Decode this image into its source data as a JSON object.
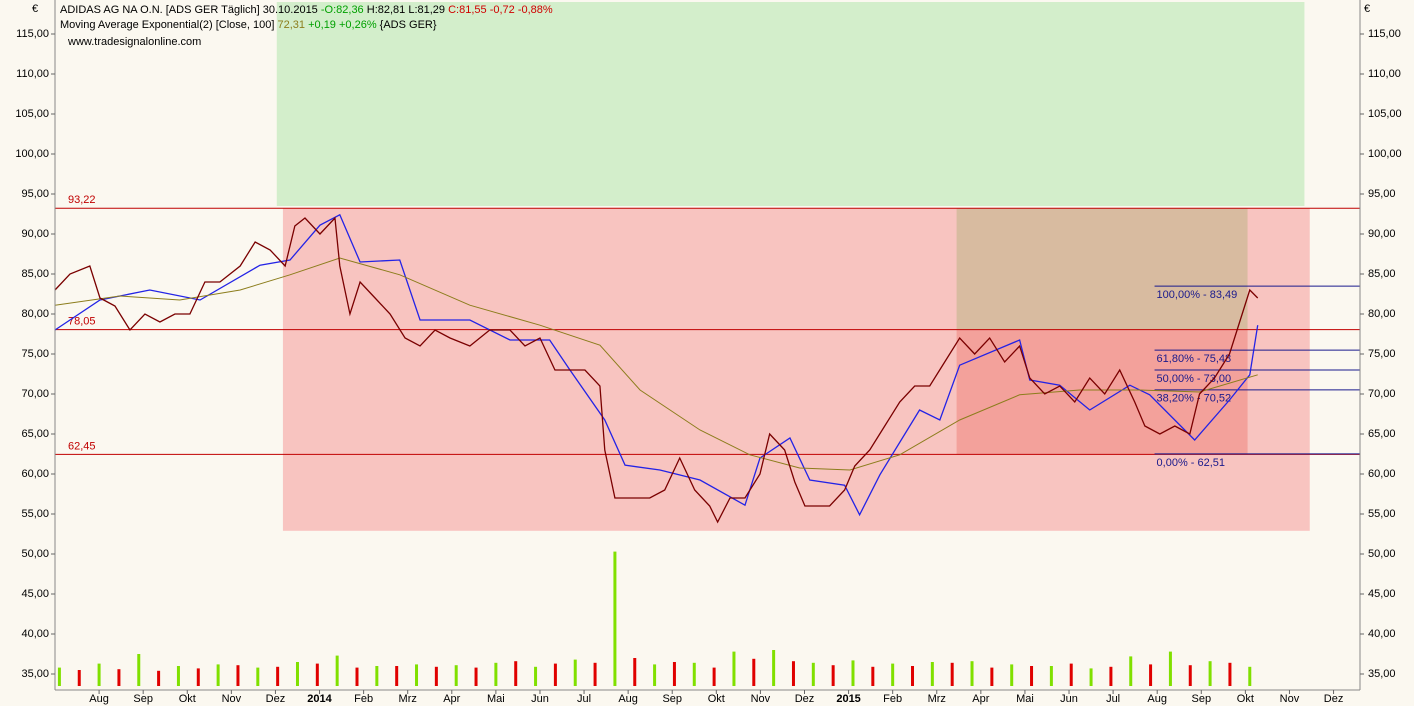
{
  "chart_data": {
    "type": "line",
    "currency": "€",
    "symbol": "ADIDAS AG NA O.N. [ADS GER  Täglich] 30.10.2015",
    "open": "-O:82,36",
    "high": "H:82,81",
    "low": "L:81,29",
    "close": "C:81,55 -0,72 -0,88%",
    "indicator": "Moving Average Exponential(2) [Close, 100]",
    "indicator_value": "72,31",
    "indicator_change": "+0,19 +0,26%",
    "indicator_source": "{ADS GER}",
    "source": "www.tradesignalonline.com",
    "xlim": [
      0,
      29.6
    ],
    "xticks": [
      {
        "value": 1,
        "label": "Aug"
      },
      {
        "value": 2,
        "label": "Sep"
      },
      {
        "value": 3,
        "label": "Okt"
      },
      {
        "value": 4,
        "label": "Nov"
      },
      {
        "value": 5,
        "label": "Dez"
      },
      {
        "value": 6,
        "label": "2014"
      },
      {
        "value": 7,
        "label": "Feb"
      },
      {
        "value": 8,
        "label": "Mrz"
      },
      {
        "value": 9,
        "label": "Apr"
      },
      {
        "value": 10,
        "label": "Mai"
      },
      {
        "value": 11,
        "label": "Jun"
      },
      {
        "value": 12,
        "label": "Jul"
      },
      {
        "value": 13,
        "label": "Aug"
      },
      {
        "value": 14,
        "label": "Sep"
      },
      {
        "value": 15,
        "label": "Okt"
      },
      {
        "value": 16,
        "label": "Nov"
      },
      {
        "value": 17,
        "label": "Dez"
      },
      {
        "value": 18,
        "label": "2015"
      },
      {
        "value": 19,
        "label": "Feb"
      },
      {
        "value": 20,
        "label": "Mrz"
      },
      {
        "value": 21,
        "label": "Apr"
      },
      {
        "value": 22,
        "label": "Mai"
      },
      {
        "value": 23,
        "label": "Jun"
      },
      {
        "value": 24,
        "label": "Jul"
      },
      {
        "value": 25,
        "label": "Aug"
      },
      {
        "value": 26,
        "label": "Sep"
      },
      {
        "value": 27,
        "label": "Okt"
      },
      {
        "value": 28,
        "label": "Nov"
      },
      {
        "value": 29,
        "label": "Dez"
      }
    ],
    "ylim": [
      33,
      119
    ],
    "yticks": [
      {
        "value": 35,
        "label": "35,00"
      },
      {
        "value": 40,
        "label": "40,00"
      },
      {
        "value": 45,
        "label": "45,00"
      },
      {
        "value": 50,
        "label": "50,00"
      },
      {
        "value": 55,
        "label": "55,00"
      },
      {
        "value": 60,
        "label": "60,00"
      },
      {
        "value": 65,
        "label": "65,00"
      },
      {
        "value": 70,
        "label": "70,00"
      },
      {
        "value": 75,
        "label": "75,00"
      },
      {
        "value": 80,
        "label": "80,00"
      },
      {
        "value": 85,
        "label": "85,00"
      },
      {
        "value": 90,
        "label": "90,00"
      },
      {
        "value": 95,
        "label": "95,00"
      },
      {
        "value": 100,
        "label": "100,00"
      },
      {
        "value": 105,
        "label": "105,00"
      },
      {
        "value": 110,
        "label": "110,00"
      },
      {
        "value": 115,
        "label": "115,00"
      }
    ],
    "zones": [
      {
        "color": "#d3eecb",
        "xlim": [
          5.03,
          28.34
        ],
        "ylim": [
          93.5,
          119
        ]
      },
      {
        "color": "#f8c4c0",
        "xlim": [
          5.17,
          28.46
        ],
        "ylim": [
          52.9,
          93.22
        ]
      },
      {
        "color": "#d8bba0",
        "xlim": [
          20.45,
          27.05
        ],
        "ylim": [
          78.05,
          93.22
        ]
      },
      {
        "color": "#f3a19b",
        "xlim": [
          20.45,
          27.05
        ],
        "ylim": [
          62.45,
          78.05
        ]
      }
    ],
    "levels": [
      {
        "value": 93.22,
        "label": "93,22"
      },
      {
        "value": 78.05,
        "label": "78,05"
      },
      {
        "value": 62.45,
        "label": "62,45"
      }
    ],
    "level_color": "#c00000",
    "fib_start": 24.94,
    "fib_color": "#1a1a8c",
    "fib": [
      {
        "value": 83.49,
        "label": "100,00% - 83,49"
      },
      {
        "value": 75.48,
        "label": "61,80% - 75,48"
      },
      {
        "value": 73.0,
        "label": "50,00% - 73,00"
      },
      {
        "value": 70.52,
        "label": "38,20% - 70,52"
      },
      {
        "value": 62.51,
        "label": "0,00% - 62,51"
      }
    ],
    "series": [
      {
        "color": "#2323e6",
        "x": [
          0,
          1.02,
          2.15,
          3.29,
          4.65,
          5.33,
          6.01,
          6.46,
          6.92,
          7.82,
          8.28,
          9.41,
          10.32,
          11.22,
          11.68,
          12.47,
          12.93,
          13.72,
          14.63,
          15.65,
          15.99,
          16.67,
          17.12,
          17.91,
          18.25,
          18.71,
          19.61,
          20.07,
          20.52,
          21.88,
          22.11,
          22.79,
          23.47,
          24.38,
          24.83,
          25.85,
          26.64,
          27.1,
          27.28
        ],
        "values": [
          78,
          81.75,
          83,
          81.75,
          86.1,
          86.75,
          91.1,
          92.4,
          86.5,
          86.75,
          79.25,
          79.25,
          76.75,
          76.75,
          73,
          66.75,
          61.1,
          60.5,
          59.25,
          56.1,
          62,
          64.5,
          59.25,
          58.6,
          54.9,
          59.9,
          68,
          66.75,
          73.6,
          76.75,
          71.75,
          71.1,
          68,
          71.1,
          69.9,
          64.25,
          69.25,
          72.4,
          78.6
        ]
      },
      {
        "name": "Moving Average Exponential(2) [Close, 100]",
        "color": "#8c7d1c",
        "x": [
          0,
          1.47,
          2.83,
          4.2,
          5.33,
          6.46,
          7.82,
          9.41,
          11,
          12.36,
          13.27,
          14.63,
          15.76,
          16.89,
          18.03,
          19.16,
          20.52,
          21.88,
          23.24,
          24.6,
          25.96,
          27.28
        ],
        "values": [
          81.1,
          82.25,
          81.75,
          83,
          84.9,
          87,
          84.9,
          81.1,
          78.6,
          76.1,
          70.5,
          65.5,
          62.4,
          60.75,
          60.5,
          62.4,
          66.75,
          69.9,
          70.5,
          70.5,
          70.25,
          72.4
        ]
      },
      {
        "name": "ADIDAS AG NA O.N.",
        "color": "#7a0000",
        "x": [
          0,
          0.34,
          0.79,
          1.02,
          1.36,
          1.7,
          2.04,
          2.38,
          2.72,
          3.06,
          3.4,
          3.74,
          4.2,
          4.54,
          4.88,
          5.22,
          5.44,
          5.67,
          6.01,
          6.35,
          6.46,
          6.69,
          6.92,
          7.26,
          7.6,
          7.94,
          8.28,
          8.62,
          8.96,
          9.41,
          9.86,
          10.32,
          10.66,
          11,
          11.34,
          11.68,
          12.02,
          12.36,
          12.47,
          12.7,
          13.04,
          13.49,
          13.83,
          14.17,
          14.51,
          14.85,
          15.03,
          15.31,
          15.65,
          15.99,
          16.21,
          16.55,
          16.78,
          17.01,
          17.23,
          17.57,
          17.91,
          18.14,
          18.48,
          18.82,
          19.16,
          19.5,
          19.84,
          20.18,
          20.52,
          20.86,
          21.2,
          21.54,
          21.88,
          22.11,
          22.45,
          22.79,
          23.13,
          23.47,
          23.81,
          24.15,
          24.49,
          24.72,
          25.06,
          25.4,
          25.74,
          25.96,
          26.3,
          26.64,
          26.87,
          27.1,
          27.28
        ],
        "values": [
          83,
          85,
          86,
          82,
          81,
          78,
          80,
          79,
          80,
          80,
          84,
          84,
          86,
          89,
          88,
          86,
          91,
          92,
          90,
          92,
          86,
          80,
          84,
          82,
          80,
          77,
          76,
          78,
          77,
          76,
          78,
          78,
          76,
          77,
          73,
          73,
          73,
          71,
          63,
          57,
          57,
          57,
          58,
          62,
          58,
          56,
          54,
          57,
          57,
          60,
          65,
          63,
          59,
          56,
          56,
          56,
          58,
          61,
          63,
          66,
          69,
          71,
          71,
          74,
          77,
          75,
          77,
          74,
          76,
          72,
          70,
          71,
          69,
          72,
          70,
          73,
          69,
          66,
          65,
          66,
          65,
          70,
          72,
          75,
          79,
          83,
          82
        ]
      }
    ],
    "volume": [
      {
        "color": "#80e000",
        "x": [
          0.1,
          1.0,
          1.9,
          2.8,
          3.7,
          4.6,
          5.5,
          6.4,
          7.3,
          8.2,
          9.1,
          10.0,
          10.9,
          11.8,
          12.7,
          13.6,
          14.5,
          15.4,
          16.3,
          17.2,
          18.1,
          19.0,
          19.9,
          20.8,
          21.7,
          22.6,
          23.5,
          24.4,
          25.3,
          26.2,
          27.1
        ],
        "values": [
          35.8,
          36.3,
          37.5,
          36.0,
          36.2,
          35.8,
          36.5,
          37.3,
          36.0,
          36.2,
          36.1,
          36.4,
          35.9,
          36.8,
          50.3,
          36.2,
          36.4,
          37.8,
          38.0,
          36.4,
          36.7,
          36.3,
          36.5,
          36.6,
          36.2,
          36.0,
          35.7,
          37.2,
          37.8,
          36.6,
          35.9
        ]
      },
      {
        "color": "#e00000",
        "x": [
          0.55,
          1.45,
          2.35,
          3.25,
          4.15,
          5.05,
          5.95,
          6.85,
          7.75,
          8.65,
          9.55,
          10.45,
          11.35,
          12.25,
          13.15,
          14.05,
          14.95,
          15.85,
          16.75,
          17.65,
          18.55,
          19.45,
          20.35,
          21.25,
          22.15,
          23.05,
          23.95,
          24.85,
          25.75,
          26.65
        ],
        "values": [
          35.5,
          35.6,
          35.4,
          35.7,
          36.1,
          35.9,
          36.3,
          35.8,
          36.0,
          35.9,
          35.8,
          36.6,
          36.3,
          36.4,
          37.0,
          36.5,
          35.8,
          36.9,
          36.6,
          36.1,
          35.9,
          36.0,
          36.4,
          35.8,
          36.0,
          36.3,
          35.9,
          36.2,
          36.1,
          36.4
        ]
      }
    ]
  }
}
